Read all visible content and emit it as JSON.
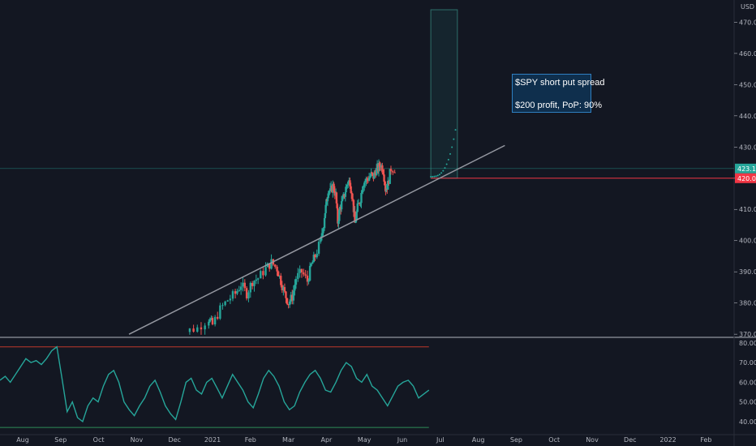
{
  "chart_data": [
    {
      "type": "candlestick",
      "title": "",
      "currency": "USD",
      "ylim": [
        369,
        474
      ],
      "y_ticks": [
        "370.00",
        "380.00",
        "390.00",
        "400.00",
        "410.00",
        "420.00",
        "430.00",
        "440.00",
        "450.00",
        "460.00",
        "470.00"
      ],
      "x_ticks": [
        "Aug",
        "Sep",
        "Oct",
        "Nov",
        "Dec",
        "2021",
        "Feb",
        "Mar",
        "Apr",
        "May",
        "Jun",
        "Jul",
        "Aug",
        "Sep",
        "Oct",
        "Nov",
        "Dec",
        "2022",
        "Feb"
      ],
      "last_price": "423.10",
      "strike_level": "420.00",
      "trend_line": {
        "from_month": 2.8,
        "from_value": 370,
        "to_month": 12.7,
        "to_value": 430.5
      },
      "projection_box": {
        "from_month": 10.75,
        "to_month": 11.45,
        "low": 420,
        "high": 474
      },
      "closes": [
        {
          "m": 8.0,
          "c": 412.0
        },
        {
          "m": 8.05,
          "c": 416.5
        },
        {
          "m": 8.1,
          "c": 415.5
        },
        {
          "m": 8.17,
          "c": 417.5
        },
        {
          "m": 8.25,
          "c": 414.5
        },
        {
          "m": 8.3,
          "c": 406.0
        },
        {
          "m": 8.36,
          "c": 410.5
        },
        {
          "m": 8.42,
          "c": 412.5
        },
        {
          "m": 8.5,
          "c": 416.0
        },
        {
          "m": 8.55,
          "c": 418.5
        },
        {
          "m": 8.62,
          "c": 419.0
        },
        {
          "m": 8.7,
          "c": 412.5
        },
        {
          "m": 8.75,
          "c": 405.5
        },
        {
          "m": 8.82,
          "c": 410.5
        },
        {
          "m": 8.9,
          "c": 413.5
        },
        {
          "m": 8.96,
          "c": 418.5
        },
        {
          "m": 9.02,
          "c": 419.0
        },
        {
          "m": 9.1,
          "c": 420.0
        },
        {
          "m": 9.18,
          "c": 421.0
        },
        {
          "m": 9.24,
          "c": 420.5
        },
        {
          "m": 9.3,
          "c": 422.5
        },
        {
          "m": 9.36,
          "c": 423.0
        },
        {
          "m": 9.42,
          "c": 424.5
        },
        {
          "m": 9.5,
          "c": 422.5
        },
        {
          "m": 9.56,
          "c": 416.5
        },
        {
          "m": 9.62,
          "c": 418.0
        },
        {
          "m": 9.7,
          "c": 423.1
        }
      ]
    },
    {
      "type": "line",
      "name": "oscillator",
      "ylim": [
        35,
        82
      ],
      "y_ticks": [
        "40.00",
        "50.00",
        "60.00",
        "70.00",
        "80.00"
      ],
      "upper_band": 78,
      "lower_band": 37,
      "values": [
        61,
        63,
        60,
        64,
        68,
        72,
        70,
        71,
        69,
        72,
        76,
        78,
        62,
        45,
        50,
        42,
        40,
        48,
        52,
        50,
        58,
        64,
        66,
        60,
        50,
        46,
        43,
        48,
        52,
        58,
        61,
        55,
        48,
        44,
        41,
        50,
        60,
        62,
        56,
        54,
        60,
        62,
        57,
        52,
        58,
        64,
        60,
        56,
        50,
        47,
        54,
        62,
        66,
        63,
        58,
        50,
        46,
        48,
        55,
        60,
        64,
        66,
        62,
        56,
        55,
        60,
        66,
        70,
        68,
        62,
        60,
        64,
        58,
        56,
        52,
        48,
        53,
        58,
        60,
        61,
        58,
        52,
        54,
        56
      ]
    }
  ],
  "annotation": {
    "line1": "$SPY short put spread",
    "line2": "$200 profit, PoP: 90%"
  },
  "colors": {
    "up": "#26a69a",
    "down": "#ef5350",
    "strike_line": "#f23645",
    "price_line": "#26a69a",
    "trend_line": "#9598a1",
    "background": "#131722"
  }
}
